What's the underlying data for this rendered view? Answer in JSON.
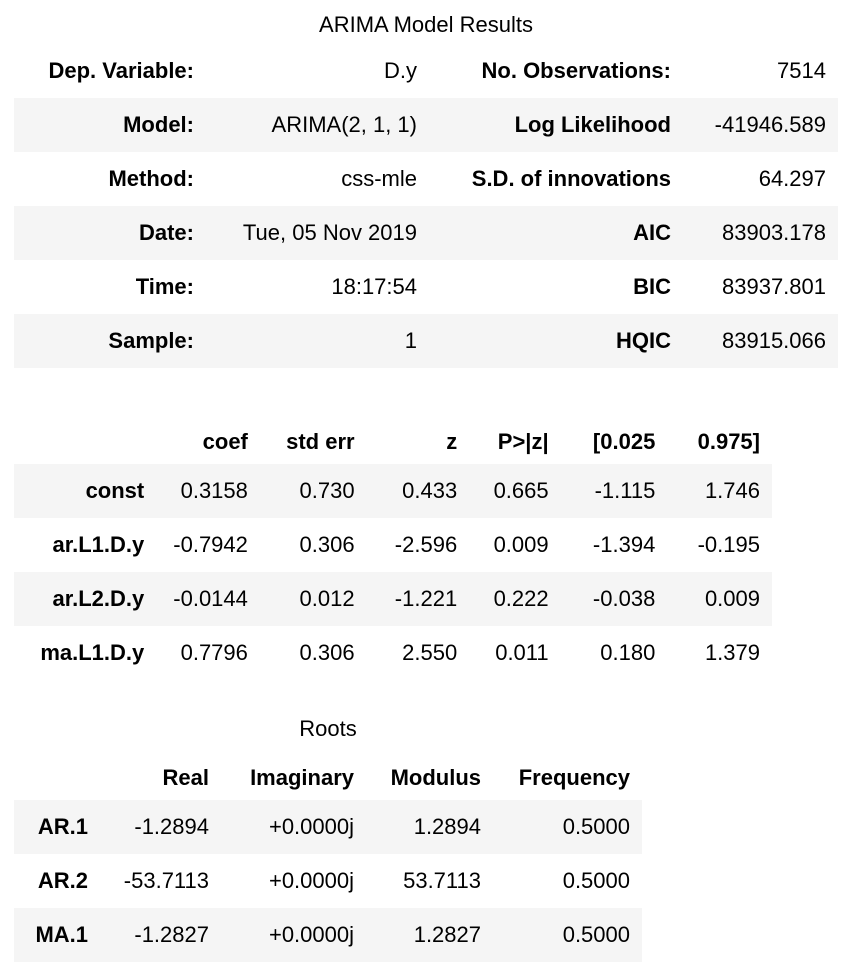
{
  "summary": {
    "title": "ARIMA Model Results",
    "rows": [
      {
        "l1": "Dep. Variable:",
        "v1": "D.y",
        "l2": "No. Observations:",
        "v2": "7514"
      },
      {
        "l1": "Model:",
        "v1": "ARIMA(2, 1, 1)",
        "l2": "Log Likelihood",
        "v2": "-41946.589"
      },
      {
        "l1": "Method:",
        "v1": "css-mle",
        "l2": "S.D. of innovations",
        "v2": "64.297"
      },
      {
        "l1": "Date:",
        "v1": "Tue, 05 Nov 2019",
        "l2": "AIC",
        "v2": "83903.178"
      },
      {
        "l1": "Time:",
        "v1": "18:17:54",
        "l2": "BIC",
        "v2": "83937.801"
      },
      {
        "l1": "Sample:",
        "v1": "1",
        "l2": "HQIC",
        "v2": "83915.066"
      }
    ]
  },
  "coefficients": {
    "columns": [
      "coef",
      "std err",
      "z",
      "P>|z|",
      "[0.025",
      "0.975]"
    ],
    "rows": [
      {
        "name": "const",
        "cells": [
          "0.3158",
          "0.730",
          "0.433",
          "0.665",
          "-1.115",
          "1.746"
        ]
      },
      {
        "name": "ar.L1.D.y",
        "cells": [
          "-0.7942",
          "0.306",
          "-2.596",
          "0.009",
          "-1.394",
          "-0.195"
        ]
      },
      {
        "name": "ar.L2.D.y",
        "cells": [
          "-0.0144",
          "0.012",
          "-1.221",
          "0.222",
          "-0.038",
          "0.009"
        ]
      },
      {
        "name": "ma.L1.D.y",
        "cells": [
          "0.7796",
          "0.306",
          "2.550",
          "0.011",
          "0.180",
          "1.379"
        ]
      }
    ]
  },
  "roots": {
    "title": "Roots",
    "columns": [
      "Real",
      "Imaginary",
      "Modulus",
      "Frequency"
    ],
    "rows": [
      {
        "name": "AR.1",
        "cells": [
          "-1.2894",
          "+0.0000j",
          "1.2894",
          "0.5000"
        ]
      },
      {
        "name": "AR.2",
        "cells": [
          "-53.7113",
          "+0.0000j",
          "53.7113",
          "0.5000"
        ]
      },
      {
        "name": "MA.1",
        "cells": [
          "-1.2827",
          "+0.0000j",
          "1.2827",
          "0.5000"
        ]
      }
    ]
  }
}
